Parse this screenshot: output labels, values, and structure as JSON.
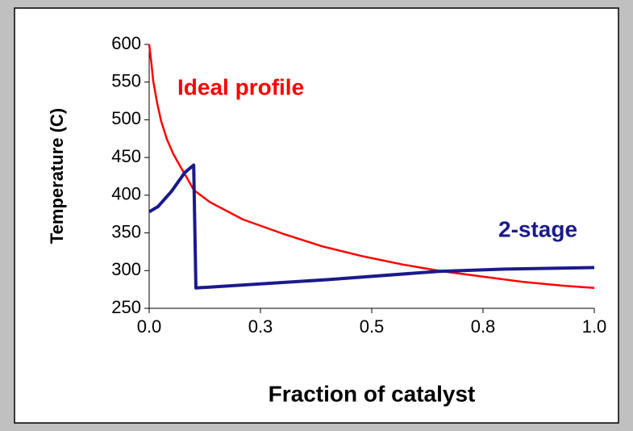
{
  "chart_data": {
    "type": "line",
    "x_label": "Fraction of catalyst",
    "y_label": "Temperature (C)",
    "annotations": [
      "Ideal profile",
      "2-stage"
    ],
    "xlim": [
      0,
      1
    ],
    "ylim": [
      250,
      600
    ],
    "xticks": [
      {
        "value": 0,
        "label": "0.0"
      },
      {
        "value": 0.25,
        "label": "0.3"
      },
      {
        "value": 0.5,
        "label": "0.5"
      },
      {
        "value": 0.75,
        "label": "0.8"
      },
      {
        "value": 1,
        "label": "1.0"
      }
    ],
    "yticks": [
      250,
      300,
      350,
      400,
      450,
      500,
      550,
      600
    ],
    "series": [
      {
        "name": "Ideal profile",
        "color": "#ff0000",
        "x": [
          0,
          0.005,
          0.009,
          0.018,
          0.027,
          0.04,
          0.054,
          0.07,
          0.085,
          0.1,
          0.136,
          0.21,
          0.3,
          0.39,
          0.48,
          0.57,
          0.66,
          0.75,
          0.84,
          0.93,
          1.0
        ],
        "values": [
          600,
          575,
          552,
          522,
          498,
          474,
          455,
          438,
          423,
          407,
          391,
          368,
          349,
          332,
          319,
          308,
          299,
          292,
          285,
          280,
          277
        ]
      },
      {
        "name": "2-stage",
        "color": "#1a1a8c",
        "x": [
          0,
          0.02,
          0.05,
          0.08,
          0.1,
          0.105,
          0.4,
          0.65,
          0.8,
          1.0
        ],
        "values": [
          378,
          385,
          405,
          430,
          440,
          277,
          288,
          299,
          302,
          304
        ]
      }
    ]
  }
}
